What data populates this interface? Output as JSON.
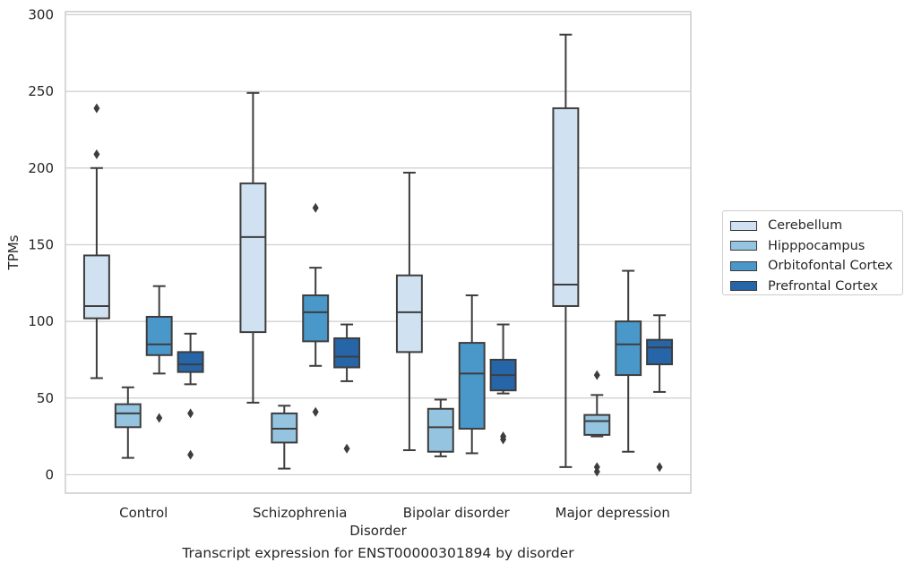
{
  "chart_data": {
    "type": "box",
    "title": "",
    "caption": "Transcript expression for ENST00000301894 by disorder",
    "xlabel": "Disorder",
    "ylabel": "TPMs",
    "ylim": [
      -12,
      302
    ],
    "yticks": [
      0,
      50,
      100,
      150,
      200,
      250,
      300
    ],
    "grid": "horizontal",
    "legend_position": "right",
    "categories": [
      "Control",
      "Schizophrenia",
      "Bipolar disorder",
      "Major depression"
    ],
    "series": [
      {
        "name": "Cerebellum",
        "color": "#d0e1f2",
        "boxes": [
          {
            "whisker_low": 63,
            "q1": 102,
            "median": 110,
            "q3": 143,
            "whisker_high": 200,
            "outliers": [
              209,
              239
            ]
          },
          {
            "whisker_low": 47,
            "q1": 93,
            "median": 155,
            "q3": 190,
            "whisker_high": 249,
            "outliers": []
          },
          {
            "whisker_low": 16,
            "q1": 80,
            "median": 106,
            "q3": 130,
            "whisker_high": 197,
            "outliers": []
          },
          {
            "whisker_low": 5,
            "q1": 110,
            "median": 124,
            "q3": 239,
            "whisker_high": 287,
            "outliers": []
          }
        ]
      },
      {
        "name": "Hipppocampus",
        "color": "#94c4df",
        "boxes": [
          {
            "whisker_low": 11,
            "q1": 31,
            "median": 40,
            "q3": 46,
            "whisker_high": 57,
            "outliers": []
          },
          {
            "whisker_low": 4,
            "q1": 21,
            "median": 30,
            "q3": 40,
            "whisker_high": 45,
            "outliers": []
          },
          {
            "whisker_low": 12,
            "q1": 15,
            "median": 31,
            "q3": 43,
            "whisker_high": 49,
            "outliers": []
          },
          {
            "whisker_low": 25,
            "q1": 26,
            "median": 35,
            "q3": 39,
            "whisker_high": 52,
            "outliers": [
              65,
              5,
              2
            ]
          }
        ]
      },
      {
        "name": "Orbitofontal Cortex",
        "color": "#4a98c9",
        "boxes": [
          {
            "whisker_low": 66,
            "q1": 78,
            "median": 85,
            "q3": 103,
            "whisker_high": 123,
            "outliers": [
              37
            ]
          },
          {
            "whisker_low": 71,
            "q1": 87,
            "median": 106,
            "q3": 117,
            "whisker_high": 135,
            "outliers": [
              174,
              41
            ]
          },
          {
            "whisker_low": 14,
            "q1": 30,
            "median": 66,
            "q3": 86,
            "whisker_high": 117,
            "outliers": []
          },
          {
            "whisker_low": 15,
            "q1": 65,
            "median": 85,
            "q3": 100,
            "whisker_high": 133,
            "outliers": []
          }
        ]
      },
      {
        "name": "Prefrontal Cortex",
        "color": "#2666a8",
        "boxes": [
          {
            "whisker_low": 59,
            "q1": 67,
            "median": 72,
            "q3": 80,
            "whisker_high": 92,
            "outliers": [
              40,
              13
            ]
          },
          {
            "whisker_low": 61,
            "q1": 70,
            "median": 77,
            "q3": 89,
            "whisker_high": 98,
            "outliers": [
              17
            ]
          },
          {
            "whisker_low": 53,
            "q1": 55,
            "median": 65,
            "q3": 75,
            "whisker_high": 98,
            "outliers": [
              23,
              25
            ]
          },
          {
            "whisker_low": 54,
            "q1": 72,
            "median": 83,
            "q3": 88,
            "whisker_high": 104,
            "outliers": [
              5
            ]
          }
        ]
      }
    ]
  }
}
